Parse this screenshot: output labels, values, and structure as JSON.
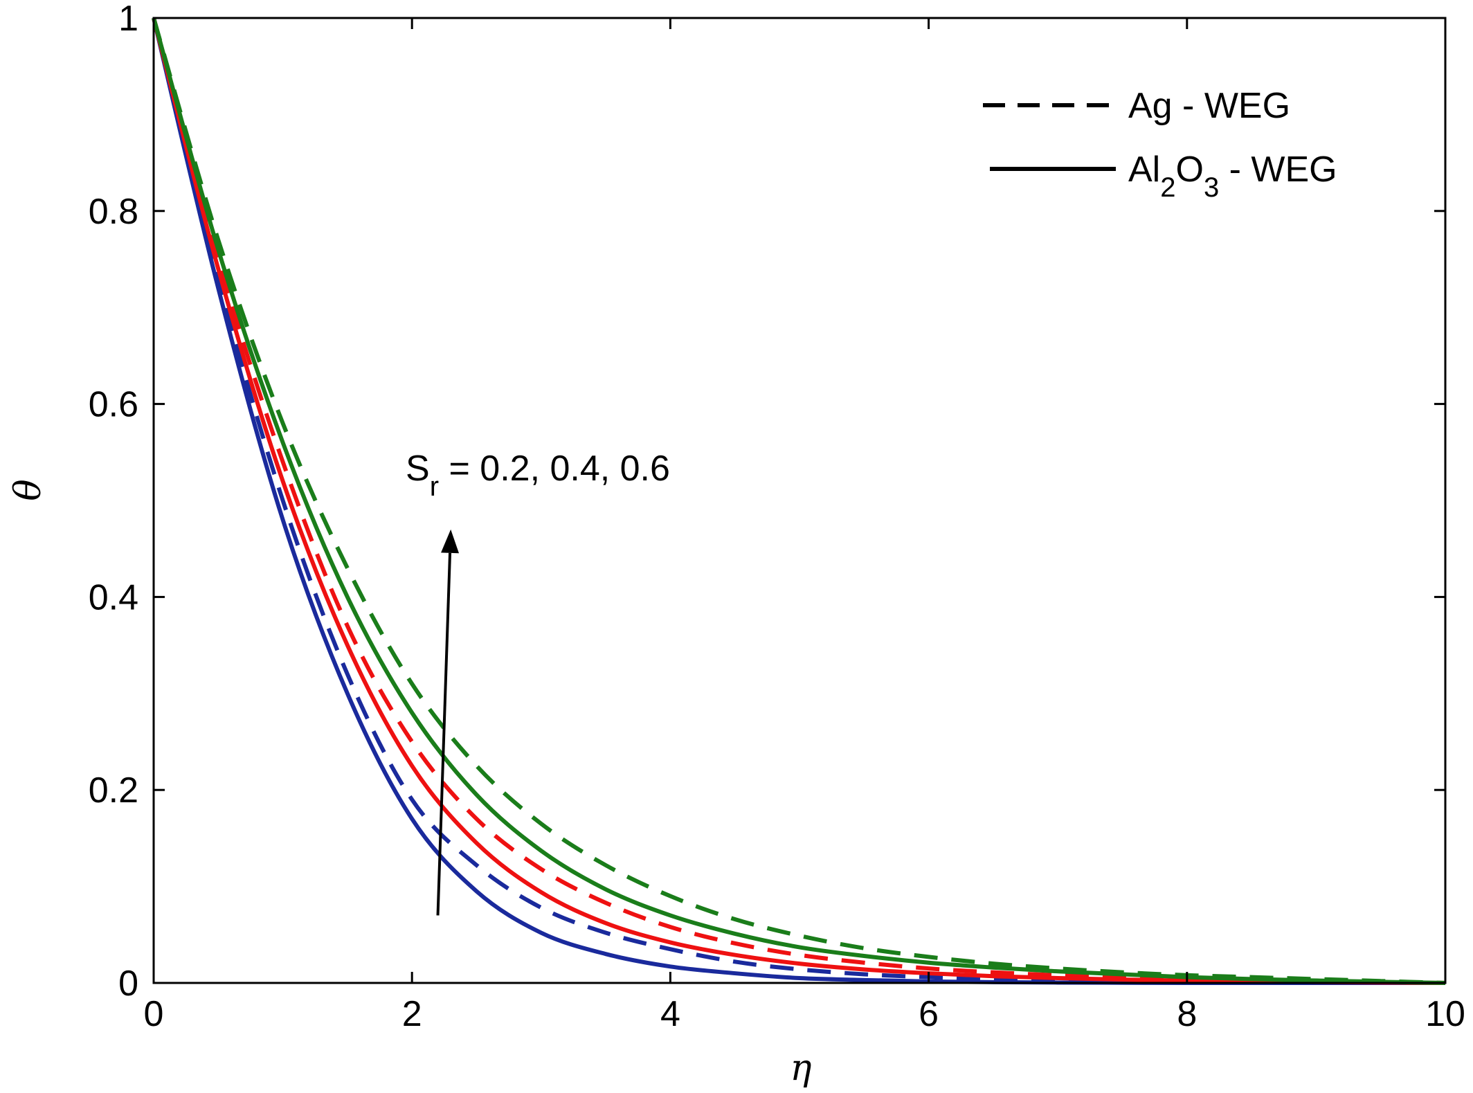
{
  "chart_data": {
    "type": "line",
    "xlabel": "η",
    "ylabel": "θ",
    "xlim": [
      0,
      10
    ],
    "ylim": [
      0,
      1
    ],
    "xticks": [
      "0",
      "2",
      "4",
      "6",
      "8",
      "10"
    ],
    "yticks": [
      "0",
      "0.2",
      "0.4",
      "0.6",
      "0.8",
      "1"
    ],
    "grid": false,
    "legend": {
      "placement": "top-right",
      "entries": [
        {
          "label": "Ag - WEG",
          "style": "dashed"
        },
        {
          "label_main": "Al",
          "sub1": "2",
          "mid": "O",
          "sub2": "3",
          "tail": " - WEG",
          "style": "solid"
        }
      ]
    },
    "annotation": {
      "symbol": "S",
      "subscript": "r",
      "text": " = 0.2, 0.4, 0.6",
      "arrow_from": [
        2.2,
        0.07
      ],
      "arrow_to": [
        2.3,
        0.47
      ]
    },
    "x": [
      0,
      0.5,
      1,
      1.5,
      2,
      2.5,
      3,
      3.5,
      4,
      4.5,
      5,
      5.5,
      6,
      6.5,
      7,
      7.5,
      8,
      8.5,
      9,
      9.5,
      10
    ],
    "series": [
      {
        "fluid": "Ag - WEG",
        "style": "dashed",
        "color": "#1a2a9c",
        "Sr": 0.2,
        "values": [
          1.0,
          0.73,
          0.5,
          0.32,
          0.19,
          0.122,
          0.078,
          0.052,
          0.035,
          0.022,
          0.014,
          0.009,
          0.006,
          0.004,
          0.003,
          0.002,
          0.001,
          0.0007,
          0.0004,
          0.0002,
          0.0
        ]
      },
      {
        "fluid": "Ag - WEG",
        "style": "dashed",
        "color": "#ee1111",
        "Sr": 0.4,
        "values": [
          1.0,
          0.75,
          0.54,
          0.37,
          0.25,
          0.17,
          0.118,
          0.083,
          0.058,
          0.041,
          0.029,
          0.021,
          0.015,
          0.011,
          0.008,
          0.006,
          0.004,
          0.003,
          0.002,
          0.001,
          0.0
        ]
      },
      {
        "fluid": "Ag - WEG",
        "style": "dashed",
        "color": "#1a7d1a",
        "Sr": 0.6,
        "values": [
          1.0,
          0.77,
          0.58,
          0.43,
          0.31,
          0.225,
          0.165,
          0.122,
          0.09,
          0.066,
          0.049,
          0.036,
          0.027,
          0.02,
          0.015,
          0.011,
          0.008,
          0.006,
          0.004,
          0.002,
          0.0
        ]
      },
      {
        "fluid": "Al2O3 - WEG",
        "style": "solid",
        "color": "#1a2a9c",
        "Sr": 0.2,
        "values": [
          1.0,
          0.72,
          0.48,
          0.3,
          0.17,
          0.095,
          0.052,
          0.03,
          0.017,
          0.01,
          0.005,
          0.003,
          0.0015,
          0.0008,
          0.0004,
          0.0002,
          0.0,
          0.0,
          0.0,
          0.0,
          0.0
        ]
      },
      {
        "fluid": "Al2O3 - WEG",
        "style": "solid",
        "color": "#ee1111",
        "Sr": 0.4,
        "values": [
          1.0,
          0.74,
          0.52,
          0.35,
          0.225,
          0.145,
          0.094,
          0.062,
          0.042,
          0.029,
          0.02,
          0.014,
          0.01,
          0.007,
          0.005,
          0.0035,
          0.0024,
          0.0015,
          0.001,
          0.0005,
          0.0
        ]
      },
      {
        "fluid": "Al2O3 - WEG",
        "style": "solid",
        "color": "#1a7d1a",
        "Sr": 0.6,
        "values": [
          1.0,
          0.76,
          0.56,
          0.4,
          0.28,
          0.195,
          0.137,
          0.097,
          0.07,
          0.051,
          0.037,
          0.028,
          0.021,
          0.016,
          0.012,
          0.009,
          0.006,
          0.004,
          0.0025,
          0.0012,
          0.0
        ]
      }
    ]
  }
}
